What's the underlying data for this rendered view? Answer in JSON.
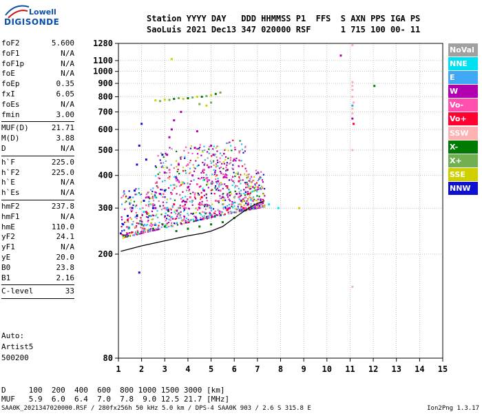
{
  "logo": {
    "line1": "Lowell",
    "line2": "DIGISONDE"
  },
  "header": {
    "line1": "Station YYYY DAY   DDD HHMMSS P1  FFS  S AXN PPS IGA PS",
    "line2": "SaoLuis 2021 Dec13 347 020000 RSF      1 715 100 00- 11"
  },
  "params": [
    {
      "k": "foF2",
      "v": "5.600"
    },
    {
      "k": "foF1",
      "v": "N/A"
    },
    {
      "k": "foF1p",
      "v": "N/A"
    },
    {
      "k": "foE",
      "v": "N/A"
    },
    {
      "k": "foEp",
      "v": "0.35"
    },
    {
      "k": "fxI",
      "v": "6.05"
    },
    {
      "k": "foEs",
      "v": "N/A"
    },
    {
      "k": "fmin",
      "v": "3.00"
    },
    {
      "sep": true
    },
    {
      "k": "MUF(D)",
      "v": "21.71"
    },
    {
      "k": "M(D)",
      "v": "3.88"
    },
    {
      "k": "D",
      "v": "N/A"
    },
    {
      "sep": true
    },
    {
      "k": "h`F",
      "v": "225.0"
    },
    {
      "k": "h`F2",
      "v": "225.0"
    },
    {
      "k": "h`E",
      "v": "N/A"
    },
    {
      "k": "h`Es",
      "v": "N/A"
    },
    {
      "sep": true
    },
    {
      "k": "hmF2",
      "v": "237.8"
    },
    {
      "k": "hmF1",
      "v": "N/A"
    },
    {
      "k": "hmE",
      "v": "110.0"
    },
    {
      "k": "yF2",
      "v": "24.1"
    },
    {
      "k": "yF1",
      "v": "N/A"
    },
    {
      "k": "yE",
      "v": "20.0"
    },
    {
      "k": "B0",
      "v": "23.8"
    },
    {
      "k": "B1",
      "v": "2.16"
    },
    {
      "sep": true
    },
    {
      "k": "C-level",
      "v": "33"
    },
    {
      "sep": true
    }
  ],
  "auto": {
    "line1": "Auto:",
    "line2": "Artist5",
    "line3": "500200"
  },
  "legend": [
    {
      "label": "NoVal",
      "color": "#a0a0a0"
    },
    {
      "label": "NNE",
      "color": "#00e0f0"
    },
    {
      "label": "E",
      "color": "#3fa8f5"
    },
    {
      "label": "W",
      "color": "#b000b0"
    },
    {
      "label": "Vo-",
      "color": "#ff50b0"
    },
    {
      "label": "Vo+",
      "color": "#ff0030"
    },
    {
      "label": "SSW",
      "color": "#ffb0b0"
    },
    {
      "label": "X-",
      "color": "#007a00"
    },
    {
      "label": "X+",
      "color": "#70b050"
    },
    {
      "label": "SSE",
      "color": "#d0d000"
    },
    {
      "label": "NNW",
      "color": "#1010d0"
    }
  ],
  "dmuf": {
    "line1": "D     100  200  400  600  800 1000 1500 3000 [km]",
    "line2": "MUF   5.9  6.0  6.4  7.0  7.8  9.0 12.5 21.7 [MHz]"
  },
  "footer": {
    "left": "SAA0K_2021347020000.RSF / 280fx256h 50 kHz 5.0 km / DPS-4 SAA0K 903 / 2.6 S 315.8 E",
    "right": "Ion2Png 1.3.17"
  },
  "chart_data": {
    "type": "scatter",
    "title": "",
    "xlabel": "",
    "ylabel": "",
    "xlim": [
      1,
      15
    ],
    "ylim": [
      80,
      1280
    ],
    "yscale": "log",
    "grid": true,
    "legend_position": "right",
    "xticks": [
      1,
      2,
      3,
      4,
      5,
      6,
      7,
      8,
      9,
      10,
      11,
      12,
      13,
      14,
      15
    ],
    "yticks": [
      80,
      200,
      300,
      400,
      500,
      600,
      700,
      800,
      900,
      1000,
      1100,
      1280
    ],
    "series": [
      {
        "name": "NNW",
        "points": [
          [
            1.1,
            240
          ],
          [
            1.2,
            260
          ],
          [
            1.4,
            280
          ],
          [
            1.6,
            300
          ],
          [
            1.7,
            350
          ],
          [
            1.8,
            440
          ],
          [
            1.9,
            520
          ],
          [
            2.0,
            630
          ],
          [
            2.2,
            460
          ],
          [
            2.3,
            330
          ],
          [
            1.5,
            330
          ],
          [
            1.8,
            280
          ],
          [
            2.1,
            320
          ],
          [
            2.5,
            300
          ],
          [
            2.9,
            480
          ],
          [
            1.9,
            170
          ],
          [
            3.0,
            350
          ]
        ]
      },
      {
        "name": "W",
        "points": [
          [
            2.3,
            330
          ],
          [
            2.6,
            300
          ],
          [
            2.8,
            340
          ],
          [
            3.0,
            410
          ],
          [
            3.1,
            480
          ],
          [
            3.2,
            560
          ],
          [
            3.3,
            600
          ],
          [
            3.5,
            390
          ],
          [
            3.6,
            440
          ],
          [
            3.8,
            320
          ],
          [
            4.0,
            360
          ],
          [
            4.2,
            400
          ],
          [
            4.3,
            510
          ],
          [
            4.5,
            300
          ],
          [
            4.7,
            350
          ],
          [
            4.9,
            430
          ],
          [
            5.1,
            480
          ],
          [
            5.3,
            380
          ],
          [
            5.5,
            330
          ],
          [
            5.7,
            420
          ],
          [
            5.8,
            300
          ],
          [
            6.1,
            340
          ],
          [
            6.3,
            320
          ],
          [
            6.6,
            310
          ],
          [
            6.9,
            300
          ],
          [
            3.4,
            650
          ],
          [
            4.4,
            590
          ],
          [
            5.0,
            520
          ],
          [
            6.0,
            460
          ],
          [
            3.7,
            700
          ],
          [
            10.6,
            1150
          ],
          [
            11.1,
            660
          ]
        ]
      },
      {
        "name": "Vo-",
        "points": [
          [
            2.5,
            310
          ],
          [
            2.7,
            360
          ],
          [
            3.0,
            300
          ],
          [
            3.3,
            340
          ],
          [
            3.6,
            380
          ],
          [
            3.9,
            300
          ],
          [
            4.1,
            330
          ],
          [
            4.4,
            370
          ],
          [
            4.6,
            310
          ],
          [
            4.8,
            390
          ],
          [
            5.2,
            320
          ],
          [
            5.4,
            350
          ],
          [
            5.9,
            310
          ],
          [
            6.2,
            330
          ],
          [
            6.5,
            300
          ],
          [
            6.8,
            320
          ],
          [
            7.1,
            310
          ],
          [
            3.2,
            420
          ],
          [
            4.0,
            440
          ],
          [
            4.7,
            420
          ],
          [
            5.6,
            400
          ]
        ]
      },
      {
        "name": "Vo+",
        "points": [
          [
            1.4,
            270
          ],
          [
            2.2,
            290
          ],
          [
            3.4,
            310
          ],
          [
            4.6,
            330
          ],
          [
            5.7,
            295
          ],
          [
            6.4,
            300
          ],
          [
            6.6,
            340
          ],
          [
            6.2,
            380
          ],
          [
            11.15,
            630
          ]
        ]
      },
      {
        "name": "SSW",
        "points": [
          [
            11.1,
            910
          ],
          [
            11.1,
            880
          ],
          [
            11.1,
            850
          ],
          [
            11.1,
            800
          ],
          [
            11.15,
            760
          ],
          [
            11.1,
            720
          ],
          [
            11.1,
            690
          ],
          [
            11.1,
            1260
          ],
          [
            11.1,
            500
          ],
          [
            11.1,
            150
          ]
        ]
      },
      {
        "name": "X-",
        "points": [
          [
            2.0,
            260
          ],
          [
            2.5,
            250
          ],
          [
            3.0,
            255
          ],
          [
            3.5,
            245
          ],
          [
            4.0,
            250
          ],
          [
            4.5,
            255
          ],
          [
            5.0,
            260
          ],
          [
            5.5,
            265
          ],
          [
            6.0,
            275
          ],
          [
            3.4,
            785
          ],
          [
            4.0,
            790
          ],
          [
            4.6,
            800
          ],
          [
            5.2,
            820
          ],
          [
            12.05,
            880
          ]
        ]
      },
      {
        "name": "X+",
        "points": [
          [
            2.8,
            770
          ],
          [
            3.2,
            778
          ],
          [
            3.6,
            790
          ],
          [
            4.2,
            795
          ],
          [
            4.8,
            805
          ],
          [
            5.4,
            830
          ],
          [
            4.5,
            750
          ],
          [
            5.0,
            760
          ]
        ]
      },
      {
        "name": "SSE",
        "points": [
          [
            2.6,
            775
          ],
          [
            3.0,
            780
          ],
          [
            3.8,
            785
          ],
          [
            4.4,
            800
          ],
          [
            5.0,
            810
          ],
          [
            3.3,
            1115
          ],
          [
            6.4,
            320
          ],
          [
            7.3,
            305
          ],
          [
            8.8,
            300
          ],
          [
            4.8,
            740
          ]
        ]
      },
      {
        "name": "NNE",
        "points": [
          [
            2.1,
            290
          ],
          [
            2.6,
            330
          ],
          [
            3.1,
            300
          ],
          [
            7.5,
            310
          ],
          [
            7.9,
            300
          ],
          [
            11.1,
            740
          ]
        ]
      },
      {
        "name": "E",
        "points": [
          [
            1.6,
            260
          ],
          [
            2.4,
            280
          ],
          [
            11.1,
            740
          ],
          [
            5.0,
            300
          ]
        ]
      },
      {
        "name": "NoVal",
        "points": [
          [
            3.6,
            300
          ],
          [
            4.2,
            320
          ],
          [
            5.5,
            310
          ],
          [
            6.0,
            330
          ]
        ]
      }
    ],
    "trace": {
      "points": [
        [
          1.1,
          205
        ],
        [
          2.0,
          215
        ],
        [
          3.0,
          225
        ],
        [
          4.0,
          235
        ],
        [
          4.6,
          240
        ],
        [
          5.0,
          245
        ],
        [
          5.5,
          255
        ],
        [
          6.0,
          275
        ],
        [
          6.5,
          295
        ],
        [
          6.9,
          310
        ],
        [
          7.3,
          320
        ]
      ]
    }
  }
}
